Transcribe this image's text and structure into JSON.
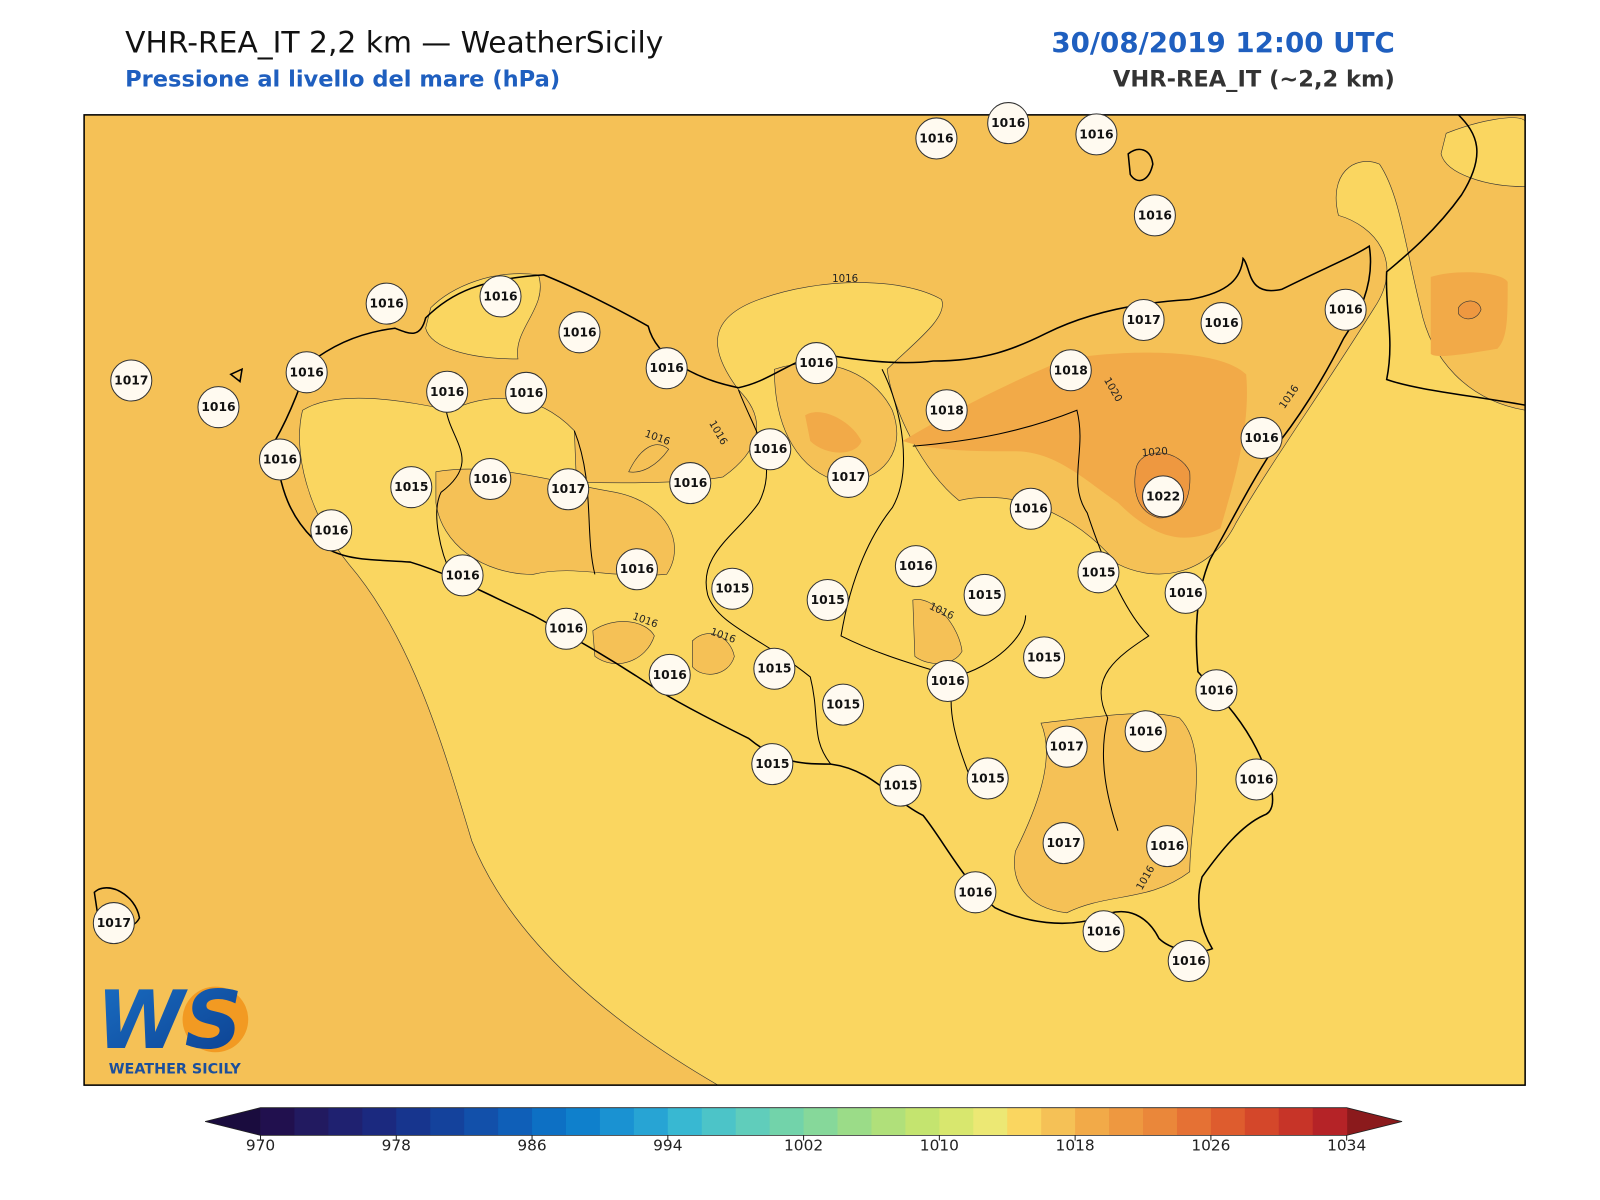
{
  "header": {
    "title": "VHR-REA_IT 2,2 km — WeatherSicily",
    "subtitle": "Pressione al livello del mare (hPa)",
    "datetime": "30/08/2019 12:00 UTC",
    "model": "VHR-REA_IT (~2,2 km)"
  },
  "map": {
    "stations": [
      1016,
      1016,
      1016,
      1016,
      1016,
      1016,
      1016,
      1017,
      1016,
      1016,
      1016,
      1016,
      1016,
      1016,
      1017,
      1016,
      1016,
      1018,
      1018,
      1016,
      1016,
      1015,
      1016,
      1017,
      1016,
      1017,
      1016,
      1022,
      1016,
      1016,
      1016,
      1016,
      1015,
      1015,
      1016,
      1015,
      1015,
      1016,
      1016,
      1016,
      1015,
      1015,
      1016,
      1015,
      1016,
      1017,
      1016,
      1016,
      1015,
      1015,
      1015,
      1017,
      1016,
      1016,
      1016,
      1016,
      1017
    ],
    "contour_labels": [
      1016,
      1016,
      1016,
      1020,
      1020,
      1016,
      1016,
      1016,
      1016,
      1016
    ]
  },
  "colorbar": {
    "lim": [
      970,
      1034
    ],
    "ticks": [
      970,
      978,
      986,
      994,
      1002,
      1010,
      1018,
      1026,
      1034
    ],
    "colors": [
      "#21104e",
      "#221a60",
      "#1f2170",
      "#1b297f",
      "#17358e",
      "#14429c",
      "#1250aa",
      "#0f5fb8",
      "#0d70c4",
      "#0f80cc",
      "#1a92d2",
      "#27a4d4",
      "#38b8d2",
      "#4cc4c8",
      "#60cdbb",
      "#72d3aa",
      "#86d89a",
      "#9bdc88",
      "#b0e07a",
      "#c4e46f",
      "#d8e76e",
      "#ece874",
      "#fad660",
      "#f5c156",
      "#f2aa48",
      "#ee9840",
      "#ea873a",
      "#e57134",
      "#de5c2e",
      "#d4472a",
      "#c73428",
      "#b52327"
    ],
    "under_color": "#1a0c3e",
    "over_color": "#8b1a1c"
  },
  "logo": {
    "mark": "WS",
    "text": "WEATHER SICILY"
  }
}
